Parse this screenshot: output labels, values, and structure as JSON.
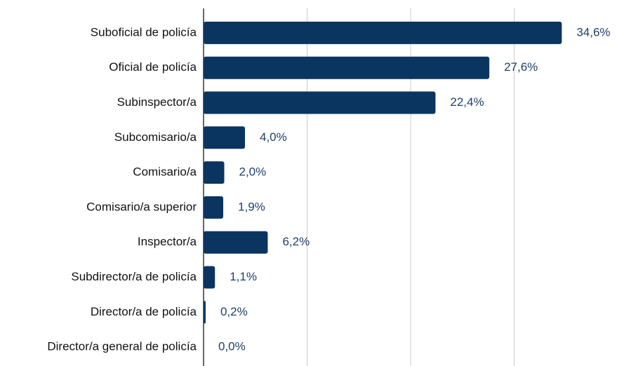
{
  "chart_data": {
    "type": "barh",
    "categories": [
      "Suboficial de policía",
      "Oficial de policía",
      "Subinspector/a",
      "Subcomisario/a",
      "Comisario/a",
      "Comisario/a superior",
      "Inspector/a",
      "Subdirector/a de policía",
      "Director/a de policía",
      "Director/a general de policía"
    ],
    "values": [
      34.6,
      27.6,
      22.4,
      4.0,
      2.0,
      1.9,
      6.2,
      1.1,
      0.2,
      0.0
    ],
    "value_labels": [
      "34,6%",
      "27,6%",
      "22,4%",
      "4,0%",
      "2,0%",
      "1,9%",
      "6,2%",
      "1,1%",
      "0,2%",
      "0,0%"
    ],
    "color": "#0b3561",
    "xlim": [
      0,
      40
    ],
    "xticks": [
      0,
      10,
      20,
      30
    ],
    "grid": true
  }
}
